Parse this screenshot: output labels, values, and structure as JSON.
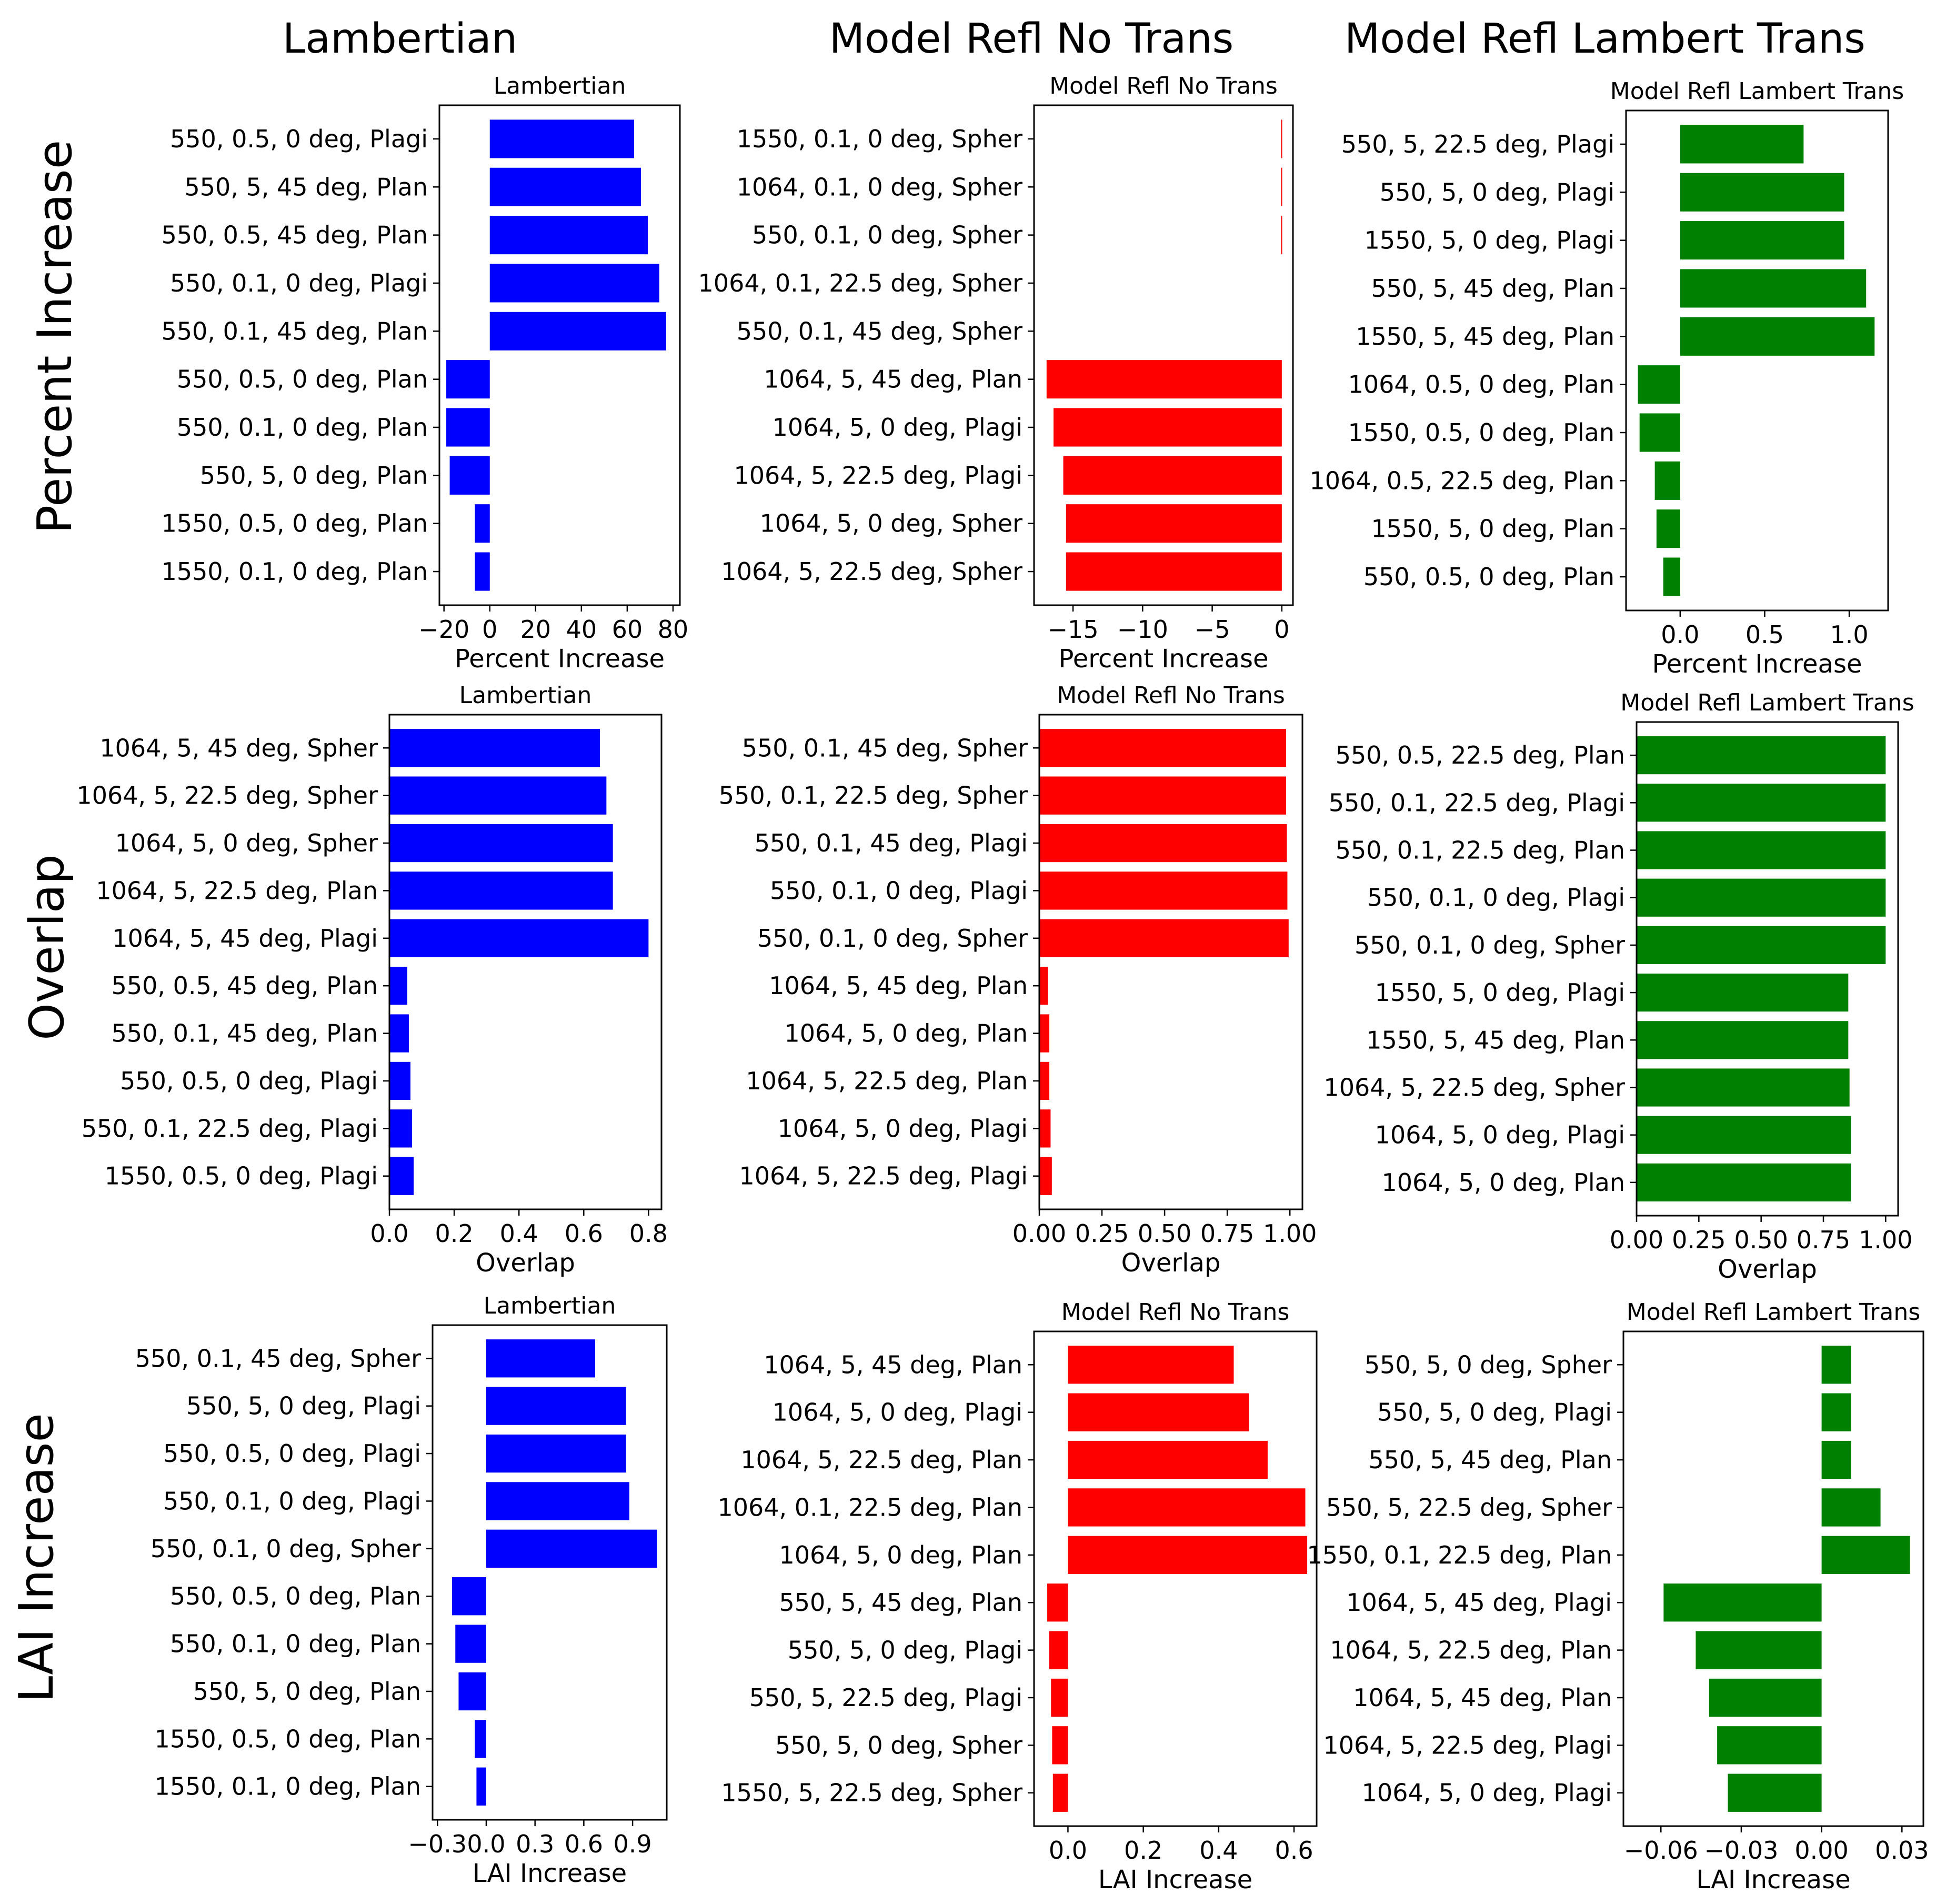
{
  "column_titles": [
    "Lambertian",
    "Model Refl No Trans",
    "Model Refl Lambert Trans"
  ],
  "row_titles": [
    "Percent Increase",
    "Overlap",
    "LAI Increase"
  ],
  "colors": {
    "Lambertian": "#0000ff",
    "Model Refl No Trans": "#ff0000",
    "Model Refl Lambert Trans": "#008000"
  },
  "chart_data": [
    {
      "type": "bar",
      "orientation": "horizontal",
      "title": "Lambertian",
      "xlabel": "Percent Increase",
      "ylabel": "Percent Increase",
      "categories": [
        "550, 0.5, 0 deg, Plagi",
        "550, 5, 45 deg, Plan",
        "550, 0.5, 45 deg, Plan",
        "550, 0.1, 0 deg, Plagi",
        "550, 0.1, 45 deg, Plan",
        "550, 0.5, 0 deg, Plan",
        "550, 0.1, 0 deg, Plan",
        "550, 5, 0 deg, Plan",
        "1550, 0.5, 0 deg, Plan",
        "1550, 0.1, 0 deg, Plan"
      ],
      "values": [
        63,
        66,
        69,
        74,
        77,
        -19,
        -19,
        -17.5,
        -6.5,
        -6.5
      ],
      "xlim": [
        -22,
        83
      ],
      "xticks": [
        -20,
        0,
        20,
        40,
        60,
        80
      ],
      "xtick_labels": [
        "−20",
        "0",
        "20",
        "40",
        "60",
        "80"
      ]
    },
    {
      "type": "bar",
      "orientation": "horizontal",
      "title": "Model Refl No Trans",
      "xlabel": "Percent Increase",
      "categories": [
        "1550, 0.1, 0 deg, Spher",
        "1064, 0.1, 0 deg, Spher",
        "550, 0.1, 0 deg, Spher",
        "1064, 0.1, 22.5 deg, Spher",
        "550, 0.1, 45 deg, Spher",
        "1064, 5, 45 deg, Plan",
        "1064, 5, 0 deg, Plagi",
        "1064, 5, 22.5 deg, Plagi",
        "1064, 5, 0 deg, Spher",
        "1064, 5, 22.5 deg, Spher"
      ],
      "values": [
        -0.05,
        -0.05,
        -0.05,
        0,
        0,
        -16.9,
        -16.4,
        -15.7,
        -15.5,
        -15.5
      ],
      "xlim": [
        -17.8,
        0.8
      ],
      "xticks": [
        -15,
        -10,
        -5,
        0
      ],
      "xtick_labels": [
        "−15",
        "−10",
        "−5",
        "0"
      ]
    },
    {
      "type": "bar",
      "orientation": "horizontal",
      "title": "Model Refl Lambert Trans",
      "xlabel": "Percent Increase",
      "categories": [
        "550, 5, 22.5 deg, Plagi",
        "550, 5, 0 deg, Plagi",
        "1550, 5, 0 deg, Plagi",
        "550, 5, 45 deg, Plan",
        "1550, 5, 45 deg, Plan",
        "1064, 0.5, 0 deg, Plan",
        "1550, 0.5, 0 deg, Plan",
        "1064, 0.5, 22.5 deg, Plan",
        "1550, 5, 0 deg, Plan",
        "550, 0.5, 0 deg, Plan"
      ],
      "values": [
        0.73,
        0.97,
        0.97,
        1.1,
        1.15,
        -0.25,
        -0.24,
        -0.15,
        -0.14,
        -0.1
      ],
      "xlim": [
        -0.32,
        1.23
      ],
      "xticks": [
        0.0,
        0.5,
        1.0
      ],
      "xtick_labels": [
        "0.0",
        "0.5",
        "1.0"
      ]
    },
    {
      "type": "bar",
      "orientation": "horizontal",
      "title": "Lambertian",
      "xlabel": "Overlap",
      "ylabel": "Overlap",
      "categories": [
        "1064, 5, 45 deg, Spher",
        "1064, 5, 22.5 deg, Spher",
        "1064, 5, 0 deg, Spher",
        "1064, 5, 22.5 deg, Plan",
        "1064, 5, 45 deg, Plagi",
        "550, 0.5, 45 deg, Plan",
        "550, 0.1, 45 deg, Plan",
        "550, 0.5, 0 deg, Plagi",
        "550, 0.1, 22.5 deg, Plagi",
        "1550, 0.5, 0 deg, Plagi"
      ],
      "values": [
        0.65,
        0.67,
        0.69,
        0.69,
        0.8,
        0.055,
        0.06,
        0.065,
        0.07,
        0.075
      ],
      "xlim": [
        0,
        0.84
      ],
      "xticks": [
        0.0,
        0.2,
        0.4,
        0.6,
        0.8
      ],
      "xtick_labels": [
        "0.0",
        "0.2",
        "0.4",
        "0.6",
        "0.8"
      ]
    },
    {
      "type": "bar",
      "orientation": "horizontal",
      "title": "Model Refl No Trans",
      "xlabel": "Overlap",
      "categories": [
        "550, 0.1, 45 deg, Spher",
        "550, 0.1, 22.5 deg, Spher",
        "550, 0.1, 45 deg, Plagi",
        "550, 0.1, 0 deg, Plagi",
        "550, 0.1, 0 deg, Spher",
        "1064, 5, 45 deg, Plan",
        "1064, 5, 0 deg, Plan",
        "1064, 5, 22.5 deg, Plan",
        "1064, 5, 0 deg, Plagi",
        "1064, 5, 22.5 deg, Plagi"
      ],
      "values": [
        0.985,
        0.985,
        0.988,
        0.99,
        0.995,
        0.035,
        0.04,
        0.04,
        0.045,
        0.05
      ],
      "xlim": [
        0,
        1.05
      ],
      "xticks": [
        0.0,
        0.25,
        0.5,
        0.75,
        1.0
      ],
      "xtick_labels": [
        "0.00",
        "0.25",
        "0.50",
        "0.75",
        "1.00"
      ]
    },
    {
      "type": "bar",
      "orientation": "horizontal",
      "title": "Model Refl Lambert Trans",
      "xlabel": "Overlap",
      "categories": [
        "550, 0.5, 22.5 deg, Plan",
        "550, 0.1, 22.5 deg, Plagi",
        "550, 0.1, 22.5 deg, Plan",
        "550, 0.1, 0 deg, Plagi",
        "550, 0.1, 0 deg, Spher",
        "1550, 5, 0 deg, Plagi",
        "1550, 5, 45 deg, Plan",
        "1064, 5, 22.5 deg, Spher",
        "1064, 5, 0 deg, Plagi",
        "1064, 5, 0 deg, Plan"
      ],
      "values": [
        1.0,
        1.0,
        1.0,
        1.0,
        1.0,
        0.85,
        0.85,
        0.855,
        0.86,
        0.86
      ],
      "xlim": [
        0,
        1.05
      ],
      "xticks": [
        0.0,
        0.25,
        0.5,
        0.75,
        1.0
      ],
      "xtick_labels": [
        "0.00",
        "0.25",
        "0.50",
        "0.75",
        "1.00"
      ]
    },
    {
      "type": "bar",
      "orientation": "horizontal",
      "title": "Lambertian",
      "xlabel": "LAI Increase",
      "ylabel": "LAI Increase",
      "categories": [
        "550, 0.1, 45 deg, Spher",
        "550, 5, 0 deg, Plagi",
        "550, 0.5, 0 deg, Plagi",
        "550, 0.1, 0 deg, Plagi",
        "550, 0.1, 0 deg, Spher",
        "550, 0.5, 0 deg, Plan",
        "550, 0.1, 0 deg, Plan",
        "550, 5, 0 deg, Plan",
        "1550, 0.5, 0 deg, Plan",
        "1550, 0.1, 0 deg, Plan"
      ],
      "values": [
        0.67,
        0.86,
        0.86,
        0.88,
        1.05,
        -0.21,
        -0.19,
        -0.17,
        -0.07,
        -0.06
      ],
      "xlim": [
        -0.33,
        1.11
      ],
      "xticks": [
        -0.3,
        0.0,
        0.3,
        0.6,
        0.9
      ],
      "xtick_labels": [
        "−0.3",
        "0.0",
        "0.3",
        "0.6",
        "0.9"
      ]
    },
    {
      "type": "bar",
      "orientation": "horizontal",
      "title": "Model Refl No Trans",
      "xlabel": "LAI Increase",
      "categories": [
        "1064, 5, 45 deg, Plan",
        "1064, 5, 0 deg, Plagi",
        "1064, 5, 22.5 deg, Plan",
        "1064, 0.1, 22.5 deg, Plan",
        "1064, 5, 0 deg, Plan",
        "550, 5, 45 deg, Plan",
        "550, 5, 0 deg, Plagi",
        "550, 5, 22.5 deg, Plagi",
        "550, 5, 0 deg, Spher",
        "1550, 5, 22.5 deg, Spher"
      ],
      "values": [
        0.44,
        0.48,
        0.53,
        0.63,
        0.635,
        -0.055,
        -0.05,
        -0.045,
        -0.042,
        -0.04
      ],
      "xlim": [
        -0.09,
        0.66
      ],
      "xticks": [
        0.0,
        0.2,
        0.4,
        0.6
      ],
      "xtick_labels": [
        "0.0",
        "0.2",
        "0.4",
        "0.6"
      ]
    },
    {
      "type": "bar",
      "orientation": "horizontal",
      "title": "Model Refl Lambert Trans",
      "xlabel": "LAI Increase",
      "categories": [
        "550, 5, 0 deg, Spher",
        "550, 5, 0 deg, Plagi",
        "550, 5, 45 deg, Plan",
        "550, 5, 22.5 deg, Spher",
        "1550, 0.1, 22.5 deg, Plan",
        "1064, 5, 45 deg, Plagi",
        "1064, 5, 22.5 deg, Plan",
        "1064, 5, 45 deg, Plan",
        "1064, 5, 22.5 deg, Plagi",
        "1064, 5, 0 deg, Plagi"
      ],
      "values": [
        0.011,
        0.011,
        0.011,
        0.022,
        0.033,
        -0.059,
        -0.047,
        -0.042,
        -0.039,
        -0.035
      ],
      "xlim": [
        -0.074,
        0.038
      ],
      "xticks": [
        -0.06,
        -0.03,
        0.0,
        0.03
      ],
      "xtick_labels": [
        "−0.06",
        "−0.03",
        "0.00",
        "0.03"
      ]
    }
  ]
}
